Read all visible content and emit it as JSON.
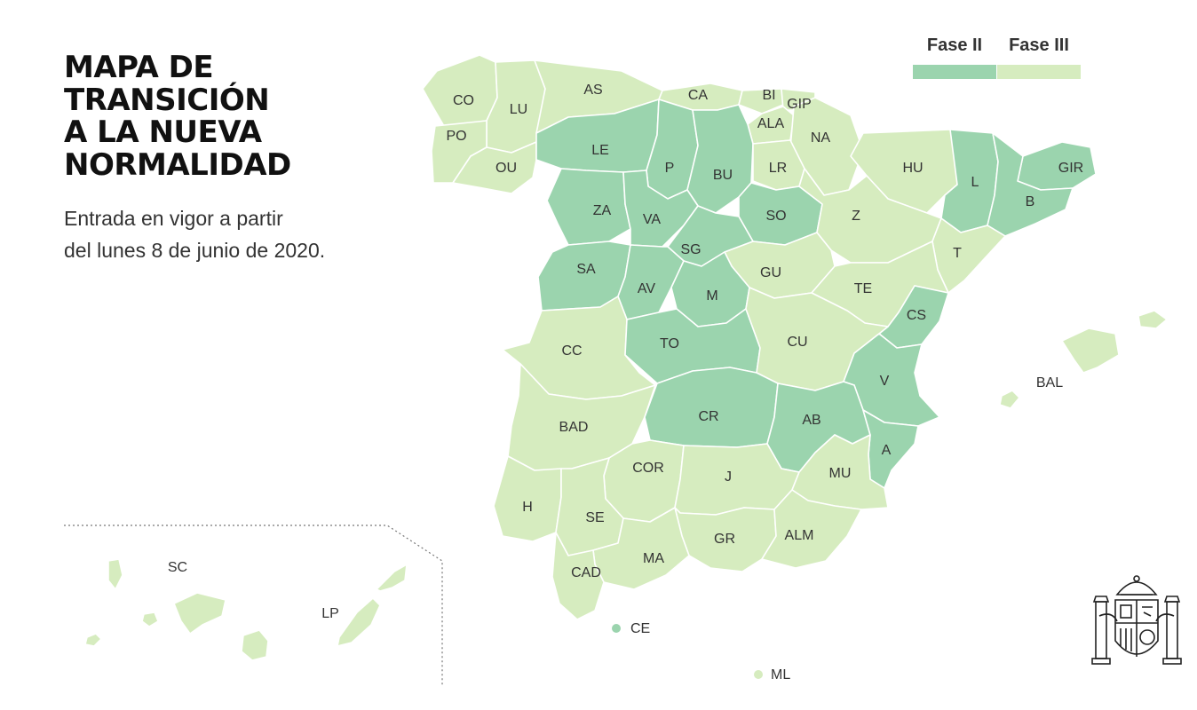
{
  "title": [
    "MAPA DE",
    "TRANSICIÓN",
    "A LA NUEVA",
    "NORMALIDAD"
  ],
  "subtitle": [
    "Entrada en vigor a partir",
    "del lunes 8 de junio de 2020."
  ],
  "legend": [
    {
      "label": "Fase II",
      "color": "#9bd4ae"
    },
    {
      "label": "Fase III",
      "color": "#d6ecbf"
    }
  ],
  "colors": {
    "fase2": "#9bd4ae",
    "fase3": "#d6ecbf",
    "border": "#ffffff",
    "text": "#333333"
  },
  "provinces": [
    {
      "code": "CO",
      "phase": "Fase III"
    },
    {
      "code": "LU",
      "phase": "Fase III"
    },
    {
      "code": "AS",
      "phase": "Fase III"
    },
    {
      "code": "CA",
      "phase": "Fase III"
    },
    {
      "code": "BI",
      "phase": "Fase III"
    },
    {
      "code": "GIP",
      "phase": "Fase III"
    },
    {
      "code": "ALA",
      "phase": "Fase III"
    },
    {
      "code": "NA",
      "phase": "Fase III"
    },
    {
      "code": "PO",
      "phase": "Fase III"
    },
    {
      "code": "OU",
      "phase": "Fase III"
    },
    {
      "code": "LE",
      "phase": "Fase II"
    },
    {
      "code": "P",
      "phase": "Fase II"
    },
    {
      "code": "BU",
      "phase": "Fase II"
    },
    {
      "code": "LR",
      "phase": "Fase III"
    },
    {
      "code": "HU",
      "phase": "Fase III"
    },
    {
      "code": "L",
      "phase": "Fase II"
    },
    {
      "code": "GIR",
      "phase": "Fase II"
    },
    {
      "code": "B",
      "phase": "Fase II"
    },
    {
      "code": "ZA",
      "phase": "Fase II"
    },
    {
      "code": "VA",
      "phase": "Fase II"
    },
    {
      "code": "SO",
      "phase": "Fase II"
    },
    {
      "code": "Z",
      "phase": "Fase III"
    },
    {
      "code": "SG",
      "phase": "Fase II"
    },
    {
      "code": "T",
      "phase": "Fase III"
    },
    {
      "code": "SA",
      "phase": "Fase II"
    },
    {
      "code": "GU",
      "phase": "Fase III"
    },
    {
      "code": "AV",
      "phase": "Fase II"
    },
    {
      "code": "M",
      "phase": "Fase II"
    },
    {
      "code": "TE",
      "phase": "Fase III"
    },
    {
      "code": "CS",
      "phase": "Fase II"
    },
    {
      "code": "CC",
      "phase": "Fase III"
    },
    {
      "code": "TO",
      "phase": "Fase II"
    },
    {
      "code": "CU",
      "phase": "Fase III"
    },
    {
      "code": "BAL",
      "phase": "Fase III"
    },
    {
      "code": "V",
      "phase": "Fase II"
    },
    {
      "code": "BAD",
      "phase": "Fase III"
    },
    {
      "code": "CR",
      "phase": "Fase II"
    },
    {
      "code": "AB",
      "phase": "Fase II"
    },
    {
      "code": "A",
      "phase": "Fase II"
    },
    {
      "code": "COR",
      "phase": "Fase III"
    },
    {
      "code": "J",
      "phase": "Fase III"
    },
    {
      "code": "MU",
      "phase": "Fase III"
    },
    {
      "code": "H",
      "phase": "Fase III"
    },
    {
      "code": "SE",
      "phase": "Fase III"
    },
    {
      "code": "GR",
      "phase": "Fase III"
    },
    {
      "code": "ALM",
      "phase": "Fase III"
    },
    {
      "code": "MA",
      "phase": "Fase III"
    },
    {
      "code": "CAD",
      "phase": "Fase III"
    },
    {
      "code": "CE",
      "phase": "Fase II"
    },
    {
      "code": "ML",
      "phase": "Fase III"
    },
    {
      "code": "SC",
      "phase": "Fase III"
    },
    {
      "code": "LP",
      "phase": "Fase III"
    }
  ],
  "icons": {
    "emblem": "spain-coat-of-arms-icon"
  }
}
